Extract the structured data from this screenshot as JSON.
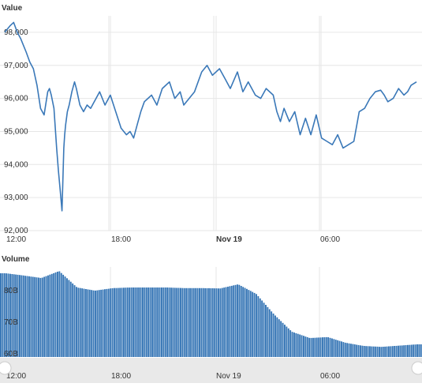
{
  "chart_data": [
    {
      "type": "line",
      "title": "Value",
      "y_ticks": [
        "92,000",
        "93,000",
        "94,000",
        "95,000",
        "96,000",
        "97,000",
        "98,000"
      ],
      "ylim": [
        92000,
        98500
      ],
      "x_ticks": [
        "12:00",
        "18:00",
        "Nov 19",
        "06:00"
      ],
      "x_tick_bold": [
        false,
        false,
        true,
        false
      ],
      "grid": true,
      "series": [
        {
          "color": "#3a78b8",
          "x": [
            0,
            0.3,
            0.5,
            0.7,
            0.9,
            1.2,
            1.4,
            1.6,
            1.8,
            2.0,
            2.2,
            2.4,
            2.5,
            2.6,
            2.75,
            2.9,
            3.0,
            3.1,
            3.2,
            3.3,
            3.35,
            3.4,
            3.5,
            3.6,
            3.75,
            3.9,
            4.0,
            4.2,
            4.4,
            4.6,
            4.8,
            5.0,
            5.3,
            5.6,
            5.9,
            6.2,
            6.5,
            6.8,
            7.0,
            7.2,
            7.4,
            7.6,
            7.8,
            8.0,
            8.2,
            8.5,
            8.8,
            9.0,
            9.2,
            9.5,
            9.8,
            10.0,
            10.3,
            10.6,
            11.0,
            11.3,
            11.6,
            12.0,
            12.3,
            12.6,
            13.0,
            13.3,
            13.6,
            14.0,
            14.3,
            14.6,
            15.0,
            15.2,
            15.4,
            15.6,
            15.9,
            16.2,
            16.5,
            16.8,
            17.1,
            17.4,
            17.7,
            18.0,
            18.3,
            18.6,
            18.9,
            19.2,
            19.5,
            19.8,
            20.1,
            20.4,
            20.7,
            21.0,
            21.2,
            21.4,
            21.7,
            22.0,
            22.3,
            22.5,
            22.7,
            23.0
          ],
          "y": [
            98000,
            98200,
            98300,
            98000,
            97800,
            97400,
            97100,
            96900,
            96400,
            95700,
            95500,
            96200,
            96300,
            96100,
            95700,
            94500,
            93800,
            93200,
            92600,
            94500,
            94900,
            95200,
            95600,
            95800,
            96200,
            96500,
            96300,
            95800,
            95600,
            95800,
            95700,
            95900,
            96200,
            95800,
            96100,
            95600,
            95100,
            94900,
            95000,
            94800,
            95200,
            95600,
            95900,
            96000,
            96100,
            95800,
            96300,
            96400,
            96500,
            96000,
            96200,
            95800,
            96000,
            96200,
            96800,
            97000,
            96700,
            96900,
            96600,
            96300,
            96800,
            96200,
            96500,
            96100,
            96000,
            96300,
            96100,
            95600,
            95300,
            95700,
            95300,
            95600,
            94900,
            95400,
            94900,
            95500,
            94800,
            94700,
            94600,
            94900,
            94500,
            94600,
            94700,
            95600,
            95700,
            96000,
            96200,
            96250,
            96100,
            95900,
            96000,
            96300,
            96100,
            96200,
            96400,
            96500
          ],
          "note": ""
        }
      ]
    },
    {
      "type": "bar",
      "title": "Volume",
      "y_ticks": [
        "60B",
        "70B",
        "80B"
      ],
      "ylim": [
        59000000000,
        87500000000
      ],
      "x_ticks": [
        "12:00",
        "18:00",
        "Nov 19",
        "06:00"
      ],
      "x_tick_bold": [
        false,
        false,
        true,
        false
      ],
      "color": "#3575b5",
      "x": [
        0,
        1,
        2,
        3,
        4,
        5,
        6,
        7,
        8,
        9,
        10,
        11,
        12,
        13,
        14,
        15,
        16,
        17,
        18,
        19,
        20,
        21,
        22,
        23
      ],
      "values": [
        85500000000,
        84800000000,
        84000000000,
        86200000000,
        81000000000,
        80000000000,
        80800000000,
        81000000000,
        81000000000,
        81000000000,
        80800000000,
        80800000000,
        80700000000,
        82000000000,
        79000000000,
        72500000000,
        67000000000,
        65000000000,
        65300000000,
        63500000000,
        62500000000,
        62200000000,
        62600000000,
        63000000000
      ]
    }
  ]
}
